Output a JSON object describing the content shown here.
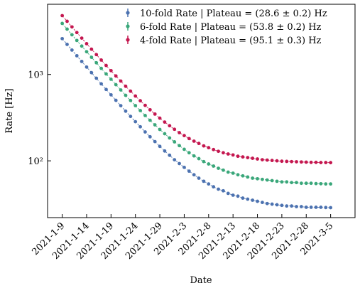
{
  "chart_data": {
    "type": "scatter",
    "xlabel": "Date",
    "ylabel": "Rate [Hz]",
    "log_y": true,
    "legend": "upper right",
    "x": [
      "2021-1-9",
      "2021-1-10",
      "2021-1-11",
      "2021-1-12",
      "2021-1-13",
      "2021-1-14",
      "2021-1-15",
      "2021-1-16",
      "2021-1-17",
      "2021-1-18",
      "2021-1-19",
      "2021-1-20",
      "2021-1-21",
      "2021-1-22",
      "2021-1-23",
      "2021-1-24",
      "2021-1-25",
      "2021-1-26",
      "2021-1-27",
      "2021-1-28",
      "2021-1-29",
      "2021-1-30",
      "2021-1-31",
      "2021-2-1",
      "2021-2-2",
      "2021-2-3",
      "2021-2-4",
      "2021-2-5",
      "2021-2-6",
      "2021-2-7",
      "2021-2-8",
      "2021-2-9",
      "2021-2-10",
      "2021-2-11",
      "2021-2-12",
      "2021-2-13",
      "2021-2-14",
      "2021-2-15",
      "2021-2-16",
      "2021-2-17",
      "2021-2-18",
      "2021-2-19",
      "2021-2-20",
      "2021-2-21",
      "2021-2-22",
      "2021-2-23",
      "2021-2-24",
      "2021-2-25",
      "2021-2-26",
      "2021-2-27",
      "2021-2-28",
      "2021-3-1",
      "2021-3-2",
      "2021-3-3",
      "2021-3-4",
      "2021-3-5"
    ],
    "series": [
      {
        "name": "10-fold Rate | Plateau = (28.6 ± 0.2) Hz",
        "color": "#4c72b0",
        "values": [
          2599,
          2231,
          1917,
          1648,
          1416,
          1218,
          1049,
          905,
          779,
          671,
          581,
          502,
          435,
          376,
          327,
          284,
          248,
          216,
          190,
          167,
          147,
          130,
          116,
          103,
          93,
          84,
          76,
          69,
          63,
          58,
          54,
          50,
          47,
          45,
          42,
          40,
          39,
          37,
          36,
          35,
          34,
          33,
          32,
          31.5,
          31,
          30.5,
          30,
          30,
          29.5,
          29.5,
          29,
          29,
          29,
          29,
          28.8,
          28.7
        ]
      },
      {
        "name": "6-fold Rate | Plateau = (53.8 ± 0.2) Hz",
        "color": "#3aa77a",
        "values": [
          3900,
          3350,
          2881,
          2477,
          2131,
          1834,
          1581,
          1365,
          1177,
          1015,
          881,
          762,
          662,
          573,
          500,
          436,
          382,
          335,
          295,
          261,
          231,
          206,
          184,
          166,
          150,
          136,
          124,
          114,
          106,
          98,
          92,
          87,
          82,
          78,
          74,
          72,
          69,
          67,
          65,
          63,
          62,
          61,
          60,
          59,
          58,
          57,
          57,
          56,
          56,
          55,
          55,
          55,
          54.5,
          54.3,
          54,
          54
        ]
      },
      {
        "name": "4-fold Rate | Plateau = (95.1 ± 0.3) Hz",
        "color": "#c4174f",
        "values": [
          4800,
          4127,
          3553,
          3059,
          2636,
          2274,
          1963,
          1699,
          1469,
          1271,
          1107,
          961,
          839,
          730,
          641,
          563,
          496,
          439,
          390,
          348,
          312,
          281,
          255,
          232,
          212,
          196,
          181,
          169,
          159,
          149,
          142,
          135,
          129,
          124,
          120,
          117,
          113,
          111,
          109,
          107,
          105,
          103,
          102,
          101,
          100,
          99,
          98.5,
          98,
          97.5,
          97,
          96.5,
          96,
          96,
          95.5,
          95.5,
          95.3
        ]
      }
    ],
    "xlim": [
      "2021-1-6",
      "2021-3-10"
    ],
    "xticks": [
      "2021-1-9",
      "2021-1-14",
      "2021-1-19",
      "2021-1-24",
      "2021-1-29",
      "2021-2-3",
      "2021-2-8",
      "2021-2-13",
      "2021-2-18",
      "2021-2-23",
      "2021-2-28",
      "2021-3-5"
    ],
    "ylim": [
      22,
      6500
    ],
    "yticks": [
      {
        "value": 100,
        "label": "10²"
      },
      {
        "value": 1000,
        "label": "10³"
      }
    ]
  }
}
